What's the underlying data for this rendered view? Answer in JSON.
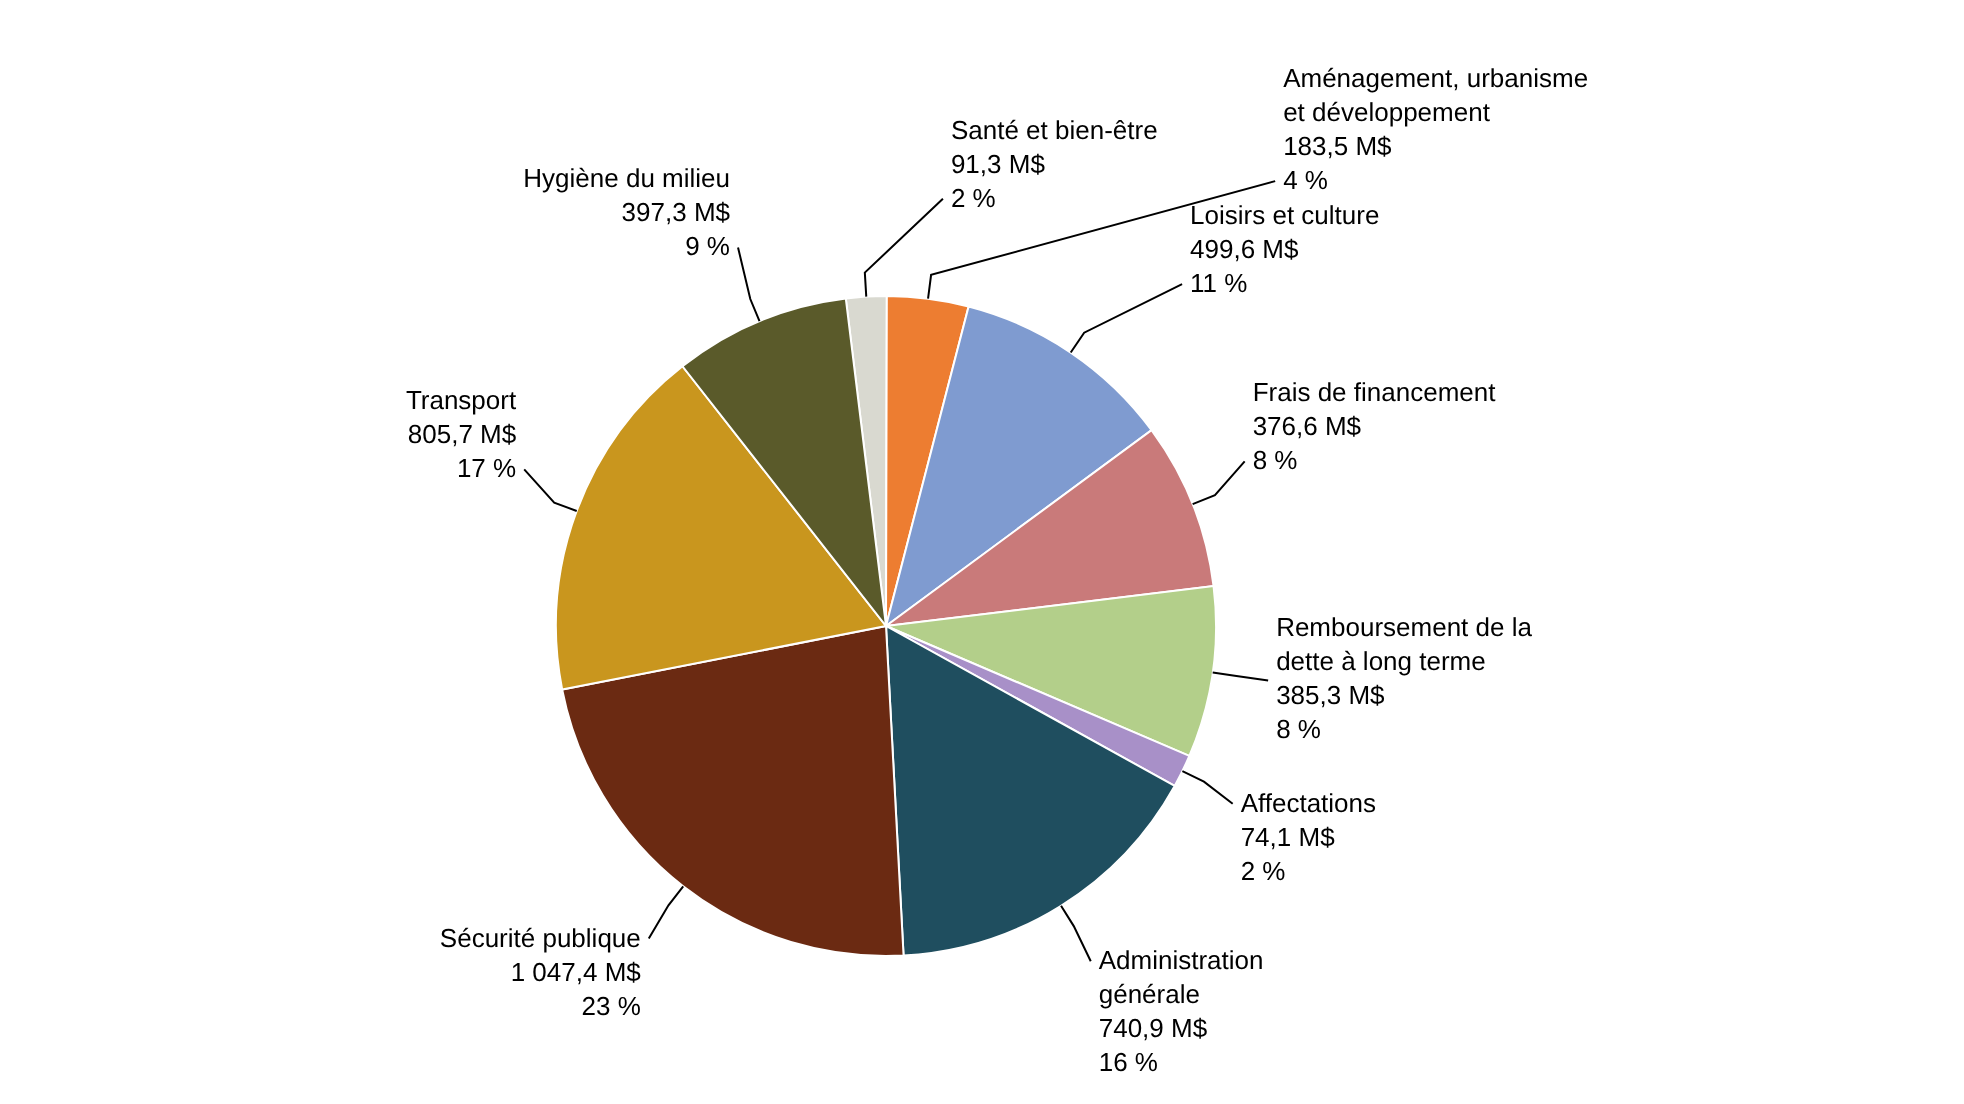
{
  "chart_data": {
    "type": "pie",
    "categories": [
      "Santé et bien-être",
      "Aménagement, urbanisme et développement",
      "Loisirs et culture",
      "Frais de financement",
      "Remboursement de la dette à long terme",
      "Affectations",
      "Administration générale",
      "Sécurité publique",
      "Transport",
      "Hygiène du milieu"
    ],
    "values": [
      91.3,
      183.5,
      499.6,
      376.6,
      385.3,
      74.1,
      740.9,
      1047.4,
      805.7,
      397.3
    ],
    "value_labels": [
      "91,3 M$\n2 %",
      "183,5 M$\n4 %",
      "499,6 M$\n11 %",
      "376,6 M$\n8 %",
      "385,3 M$\n8 %",
      "74,1 M$\n2 %",
      "740,9 M$\n16 %",
      "1 047,4 M$\n23 %",
      "805,7 M$\n17 %",
      "397,3 M$\n9 %"
    ],
    "colors": [
      "#d9d9d0",
      "#ed7d31",
      "#7f9bd0",
      "#c97a7a",
      "#b3cf8a",
      "#a890c8",
      "#1f4e5f",
      "#6b2a12",
      "#c9961e",
      "#5a5a2a"
    ],
    "legend": false
  }
}
